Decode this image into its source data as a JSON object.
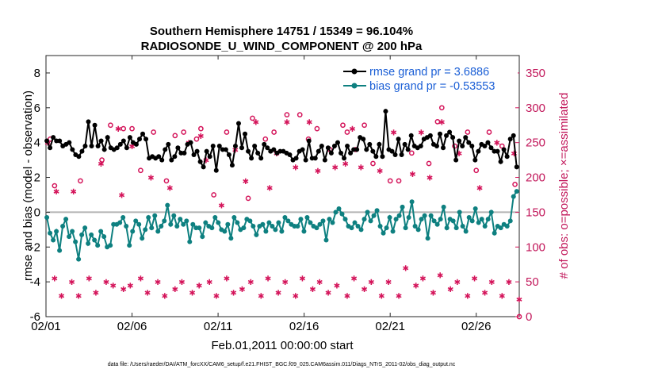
{
  "chart_data": {
    "type": "line",
    "title": "Southern Hemisphere 14751 / 15349 = 96.104%",
    "subtitle": "RADIOSONDE_U_WIND_COMPONENT @ 200 hPa",
    "xlabel": "Feb.01,2011 00:00:00 start",
    "ylabel": "rmse and bias (model - observation)",
    "y2label": "# of obs: o=possible; ×=assimilated",
    "footer": "data file: /Users/raeder/DAI/ATM_forcXX/CAM6_setup/f.e21.FHIST_BGC.f09_025.CAM6assim.011/Diags_NTrS_2011-02/obs_diag_output.nc",
    "x_ticks": [
      "02/01",
      "02/06",
      "02/11",
      "02/16",
      "02/21",
      "02/26"
    ],
    "x_tick_days": [
      0,
      5,
      10,
      15,
      20,
      25
    ],
    "xlim_days": [
      0,
      27.5
    ],
    "ylim": [
      -6,
      9
    ],
    "y_ticks": [
      "-6",
      "-4",
      "-2",
      "0",
      "2",
      "4",
      "6",
      "8"
    ],
    "y2lim": [
      0,
      375
    ],
    "y2_ticks": [
      "0",
      "50",
      "100",
      "150",
      "200",
      "250",
      "300",
      "350"
    ],
    "grid": false,
    "legend_position": "top-right",
    "colors": {
      "rmse": "#000000",
      "bias": "#0e8080",
      "obs": "#d4145a",
      "zero": "#b4b4b4",
      "legend_text": "#1b5fd6"
    },
    "series": [
      {
        "name": "rmse grand pr = 3.6886",
        "key": "rmse",
        "values": [
          4.1,
          3.7,
          4.3,
          4.1,
          4.1,
          3.8,
          3.9,
          4.0,
          3.6,
          3.3,
          3.2,
          3.5,
          3.8,
          5.2,
          3.8,
          5.0,
          3.8,
          4.1,
          3.6,
          4.3,
          3.7,
          3.6,
          3.7,
          3.9,
          4.1,
          3.7,
          4.3,
          4.0,
          3.9,
          4.2,
          4.5,
          4.2,
          3.1,
          3.2,
          3.1,
          3.2,
          3.0,
          3.6,
          3.9,
          3.0,
          3.2,
          3.7,
          3.4,
          3.4,
          3.9,
          4.0,
          3.3,
          3.5,
          2.9,
          2.6,
          3.5,
          3.2,
          3.8,
          2.4,
          3.8,
          3.6,
          3.6,
          3.3,
          2.7,
          3.8,
          5.1,
          3.7,
          4.5,
          3.5,
          3.1,
          3.8,
          3.4,
          3.1,
          3.9,
          3.7,
          3.5,
          3.6,
          3.4,
          3.5,
          3.5,
          3.4,
          3.3,
          3.0,
          3.1,
          3.5,
          3.6,
          3.0,
          4.1,
          3.1,
          3.1,
          3.5,
          3.8,
          3.0,
          3.7,
          3.4,
          3.8,
          4.0,
          3.4,
          3.1,
          3.8,
          3.4,
          3.6,
          3.6,
          4.3,
          4.2,
          3.6,
          3.9,
          3.5,
          3.2,
          3.9,
          3.2,
          5.8,
          3.6,
          3.5,
          3.3,
          4.2,
          3.3,
          3.9,
          3.6,
          4.4,
          3.8,
          3.7,
          3.8,
          4.2,
          4.3,
          4.4,
          3.9,
          3.8,
          4.5,
          3.7,
          4.4,
          4.6,
          4.3,
          3.0,
          4.1,
          3.8,
          4.3,
          4.0,
          3.8,
          3.0,
          3.5,
          3.9,
          3.8,
          4.0,
          3.7,
          3.5,
          3.5,
          2.9,
          3.6,
          3.2,
          4.2,
          4.4,
          2.6
        ]
      },
      {
        "name": "bias grand pr = -0.53553",
        "key": "bias",
        "values": [
          -0.3,
          -1.2,
          -1.6,
          -1.1,
          -2.2,
          -0.8,
          -0.4,
          -1.4,
          -1.1,
          -1.7,
          -2.7,
          -1.3,
          -0.9,
          -1.8,
          -1.3,
          -1.6,
          -1.9,
          -1.1,
          -1.4,
          -2.0,
          -1.9,
          -0.7,
          -0.7,
          -0.6,
          -0.3,
          -0.8,
          -1.9,
          -1.1,
          -0.5,
          -0.7,
          -1.5,
          -1.0,
          -0.3,
          -0.9,
          -0.2,
          -1.1,
          -0.8,
          -0.5,
          0.4,
          -0.7,
          -0.2,
          -0.8,
          -0.4,
          -0.7,
          -0.5,
          -1.7,
          -0.7,
          -0.9,
          -0.9,
          -1.4,
          -0.6,
          -0.8,
          -0.9,
          -0.3,
          -0.6,
          -1.0,
          -1.1,
          -0.7,
          -1.5,
          -0.3,
          -0.6,
          -1.0,
          -0.9,
          -0.4,
          -0.5,
          -0.8,
          -1.3,
          -0.8,
          -0.7,
          -1.1,
          -0.6,
          -0.8,
          -1.0,
          -0.6,
          -1.1,
          -0.3,
          -0.5,
          -0.7,
          -0.8,
          -0.8,
          -0.4,
          -1.1,
          -0.3,
          -0.6,
          -0.8,
          -0.9,
          -0.7,
          -0.5,
          -1.6,
          -0.4,
          -0.6,
          0.0,
          0.2,
          -0.1,
          -0.4,
          -0.8,
          -0.9,
          -0.6,
          -0.8,
          -1.0,
          -0.4,
          0.0,
          -0.5,
          -0.2,
          0.1,
          -0.8,
          -1.2,
          -0.9,
          -0.3,
          -1.1,
          -0.4,
          -0.2,
          0.3,
          -0.9,
          -0.3,
          0.6,
          -0.8,
          -1.0,
          -0.4,
          -0.2,
          -1.5,
          -0.2,
          -0.5,
          -0.7,
          -0.4,
          0.3,
          -0.9,
          -0.4,
          -0.5,
          -0.9,
          0.0,
          -0.8,
          -1.1,
          -0.3,
          -0.5,
          0.2,
          -0.6,
          -0.4,
          -0.8,
          -0.4,
          0.0,
          -1.2,
          -0.8,
          -0.9,
          -0.7,
          -0.8,
          -0.5,
          0.9,
          1.2
        ]
      }
    ],
    "obs_possible": [
      {
        "x": 0.25,
        "v": 255
      },
      {
        "x": 0.5,
        "v": 188
      },
      {
        "x": 2.0,
        "v": 195
      },
      {
        "x": 3.25,
        "v": 225
      },
      {
        "x": 3.75,
        "v": 275
      },
      {
        "x": 4.5,
        "v": 270
      },
      {
        "x": 5.0,
        "v": 270
      },
      {
        "x": 5.5,
        "v": 210
      },
      {
        "x": 6.25,
        "v": 265
      },
      {
        "x": 7.0,
        "v": 195
      },
      {
        "x": 7.5,
        "v": 260
      },
      {
        "x": 8.0,
        "v": 265
      },
      {
        "x": 8.75,
        "v": 255
      },
      {
        "x": 9.0,
        "v": 270
      },
      {
        "x": 9.75,
        "v": 175
      },
      {
        "x": 10.5,
        "v": 265
      },
      {
        "x": 11.75,
        "v": 170
      },
      {
        "x": 12.0,
        "v": 285
      },
      {
        "x": 12.75,
        "v": 255
      },
      {
        "x": 13.25,
        "v": 265
      },
      {
        "x": 14.0,
        "v": 290
      },
      {
        "x": 14.75,
        "v": 290
      },
      {
        "x": 15.25,
        "v": 255
      },
      {
        "x": 15.75,
        "v": 270
      },
      {
        "x": 16.5,
        "v": 240
      },
      {
        "x": 17.25,
        "v": 275
      },
      {
        "x": 17.5,
        "v": 265
      },
      {
        "x": 18.0,
        "v": 240
      },
      {
        "x": 18.5,
        "v": 275
      },
      {
        "x": 19.0,
        "v": 220
      },
      {
        "x": 20.0,
        "v": 195
      },
      {
        "x": 20.5,
        "v": 195
      },
      {
        "x": 21.25,
        "v": 235
      },
      {
        "x": 22.25,
        "v": 220
      },
      {
        "x": 22.75,
        "v": 280
      },
      {
        "x": 23.0,
        "v": 300
      },
      {
        "x": 23.75,
        "v": 245
      },
      {
        "x": 24.5,
        "v": 265
      },
      {
        "x": 25.0,
        "v": 210
      },
      {
        "x": 25.75,
        "v": 265
      },
      {
        "x": 26.5,
        "v": 245
      },
      {
        "x": 27.25,
        "v": 190
      },
      {
        "x": 27.5,
        "v": 0
      }
    ],
    "obs_assimilated": [
      {
        "x": 0.1,
        "v": 250
      },
      {
        "x": 0.5,
        "v": 55
      },
      {
        "x": 0.6,
        "v": 180
      },
      {
        "x": 0.9,
        "v": 30
      },
      {
        "x": 1.5,
        "v": 50
      },
      {
        "x": 1.6,
        "v": 180
      },
      {
        "x": 1.9,
        "v": 30
      },
      {
        "x": 2.5,
        "v": 55
      },
      {
        "x": 2.9,
        "v": 35
      },
      {
        "x": 3.2,
        "v": 220
      },
      {
        "x": 3.5,
        "v": 50
      },
      {
        "x": 3.9,
        "v": 45
      },
      {
        "x": 4.2,
        "v": 270
      },
      {
        "x": 4.4,
        "v": 175
      },
      {
        "x": 4.5,
        "v": 40
      },
      {
        "x": 4.9,
        "v": 45
      },
      {
        "x": 5.0,
        "v": 245
      },
      {
        "x": 5.5,
        "v": 55
      },
      {
        "x": 5.9,
        "v": 35
      },
      {
        "x": 6.1,
        "v": 200
      },
      {
        "x": 6.5,
        "v": 50
      },
      {
        "x": 6.9,
        "v": 30
      },
      {
        "x": 7.2,
        "v": 185
      },
      {
        "x": 7.5,
        "v": 40
      },
      {
        "x": 7.9,
        "v": 50
      },
      {
        "x": 8.3,
        "v": 250
      },
      {
        "x": 8.5,
        "v": 35
      },
      {
        "x": 8.9,
        "v": 45
      },
      {
        "x": 9.0,
        "v": 260
      },
      {
        "x": 9.3,
        "v": 225
      },
      {
        "x": 9.5,
        "v": 50
      },
      {
        "x": 9.9,
        "v": 30
      },
      {
        "x": 10.2,
        "v": 160
      },
      {
        "x": 10.5,
        "v": 55
      },
      {
        "x": 10.9,
        "v": 35
      },
      {
        "x": 11.0,
        "v": 240
      },
      {
        "x": 11.4,
        "v": 40
      },
      {
        "x": 11.6,
        "v": 195
      },
      {
        "x": 11.9,
        "v": 50
      },
      {
        "x": 12.2,
        "v": 280
      },
      {
        "x": 12.5,
        "v": 30
      },
      {
        "x": 12.9,
        "v": 55
      },
      {
        "x": 13.0,
        "v": 185
      },
      {
        "x": 13.4,
        "v": 235
      },
      {
        "x": 13.5,
        "v": 35
      },
      {
        "x": 13.9,
        "v": 50
      },
      {
        "x": 14.0,
        "v": 280
      },
      {
        "x": 14.5,
        "v": 30
      },
      {
        "x": 14.5,
        "v": 215
      },
      {
        "x": 14.9,
        "v": 55
      },
      {
        "x": 15.3,
        "v": 280
      },
      {
        "x": 15.5,
        "v": 40
      },
      {
        "x": 15.8,
        "v": 210
      },
      {
        "x": 15.9,
        "v": 50
      },
      {
        "x": 16.4,
        "v": 35
      },
      {
        "x": 16.8,
        "v": 215
      },
      {
        "x": 16.9,
        "v": 45
      },
      {
        "x": 17.4,
        "v": 220
      },
      {
        "x": 17.5,
        "v": 30
      },
      {
        "x": 17.8,
        "v": 270
      },
      {
        "x": 17.9,
        "v": 55
      },
      {
        "x": 18.3,
        "v": 215
      },
      {
        "x": 18.5,
        "v": 40
      },
      {
        "x": 18.9,
        "v": 50
      },
      {
        "x": 19.4,
        "v": 210
      },
      {
        "x": 19.5,
        "v": 30
      },
      {
        "x": 19.9,
        "v": 50
      },
      {
        "x": 20.2,
        "v": 265
      },
      {
        "x": 20.5,
        "v": 30
      },
      {
        "x": 20.9,
        "v": 70
      },
      {
        "x": 21.3,
        "v": 205
      },
      {
        "x": 21.5,
        "v": 45
      },
      {
        "x": 21.8,
        "v": 265
      },
      {
        "x": 21.9,
        "v": 55
      },
      {
        "x": 22.3,
        "v": 200
      },
      {
        "x": 22.5,
        "v": 35
      },
      {
        "x": 22.9,
        "v": 60
      },
      {
        "x": 23.0,
        "v": 280
      },
      {
        "x": 23.5,
        "v": 40
      },
      {
        "x": 23.9,
        "v": 50
      },
      {
        "x": 24.0,
        "v": 235
      },
      {
        "x": 24.5,
        "v": 30
      },
      {
        "x": 24.9,
        "v": 55
      },
      {
        "x": 25.2,
        "v": 185
      },
      {
        "x": 25.5,
        "v": 35
      },
      {
        "x": 25.9,
        "v": 50
      },
      {
        "x": 26.2,
        "v": 250
      },
      {
        "x": 26.5,
        "v": 30
      },
      {
        "x": 26.9,
        "v": 50
      },
      {
        "x": 27.2,
        "v": 235
      },
      {
        "x": 27.5,
        "v": 25
      }
    ]
  }
}
